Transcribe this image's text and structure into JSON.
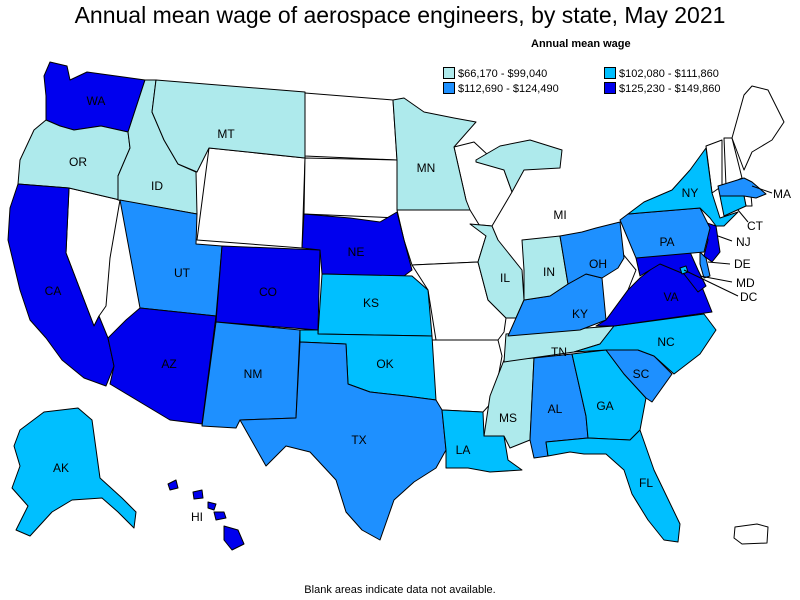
{
  "title": "Annual mean wage of aerospace engineers, by state, May 2021",
  "legend": {
    "title": "Annual mean wage",
    "bins": [
      {
        "label": "$66,170 - $99,040",
        "color": "#aeeaec"
      },
      {
        "label": "$102,080 - $111,860",
        "color": "#00bfff"
      },
      {
        "label": "$112,690 - $124,490",
        "color": "#1e90ff"
      },
      {
        "label": "$125,230 - $149,860",
        "color": "#0000ee"
      }
    ]
  },
  "footnote": "Blank areas indicate data not available.",
  "states": {
    "WA": "$125,230 - $149,860",
    "OR": "$66,170 - $99,040",
    "CA": "$125,230 - $149,860",
    "ID": "$66,170 - $99,040",
    "MT": "$66,170 - $99,040",
    "UT": "$112,690 - $124,490",
    "AZ": "$125,230 - $149,860",
    "CO": "$125,230 - $149,860",
    "NM": "$112,690 - $124,490",
    "NE": "$125,230 - $149,860",
    "KS": "$102,080 - $111,860",
    "OK": "$102,080 - $111,860",
    "TX": "$112,690 - $124,490",
    "MN": "$66,170 - $99,040",
    "LA": "$102,080 - $111,860",
    "IL": "$66,170 - $99,040",
    "MS": "$66,170 - $99,040",
    "AL": "$112,690 - $124,490",
    "TN": "$66,170 - $99,040",
    "KY": "$112,690 - $124,490",
    "IN": "$66,170 - $99,040",
    "MI": "$66,170 - $99,040",
    "OH": "$112,690 - $124,490",
    "GA": "$102,080 - $111,860",
    "FL": "$102,080 - $111,860",
    "SC": "$112,690 - $124,490",
    "NC": "$102,080 - $111,860",
    "VA": "$125,230 - $149,860",
    "MD": "$125,230 - $149,860",
    "DC": "$102,080 - $111,860",
    "DE": "$112,690 - $124,490",
    "NJ": "$125,230 - $149,860",
    "PA": "$112,690 - $124,490",
    "NY": "$102,080 - $111,860",
    "CT": "$102,080 - $111,860",
    "MA": "$112,690 - $124,490",
    "AK": "$102,080 - $111,860",
    "HI": "$125,230 - $149,860"
  },
  "labels": {
    "WA": "WA",
    "OR": "OR",
    "CA": "CA",
    "ID": "ID",
    "MT": "MT",
    "UT": "UT",
    "AZ": "AZ",
    "CO": "CO",
    "NM": "NM",
    "NE": "NE",
    "KS": "KS",
    "OK": "OK",
    "TX": "TX",
    "MN": "MN",
    "LA": "LA",
    "IL": "IL",
    "MS": "MS",
    "AL": "AL",
    "TN": "TN",
    "KY": "KY",
    "IN": "IN",
    "MI": "MI",
    "OH": "OH",
    "GA": "GA",
    "FL": "FL",
    "SC": "SC",
    "NC": "NC",
    "VA": "VA",
    "MD": "MD",
    "DC": "DC",
    "DE": "DE",
    "NJ": "NJ",
    "PA": "PA",
    "NY": "NY",
    "CT": "CT",
    "MA": "MA",
    "AK": "AK",
    "HI": "HI"
  }
}
